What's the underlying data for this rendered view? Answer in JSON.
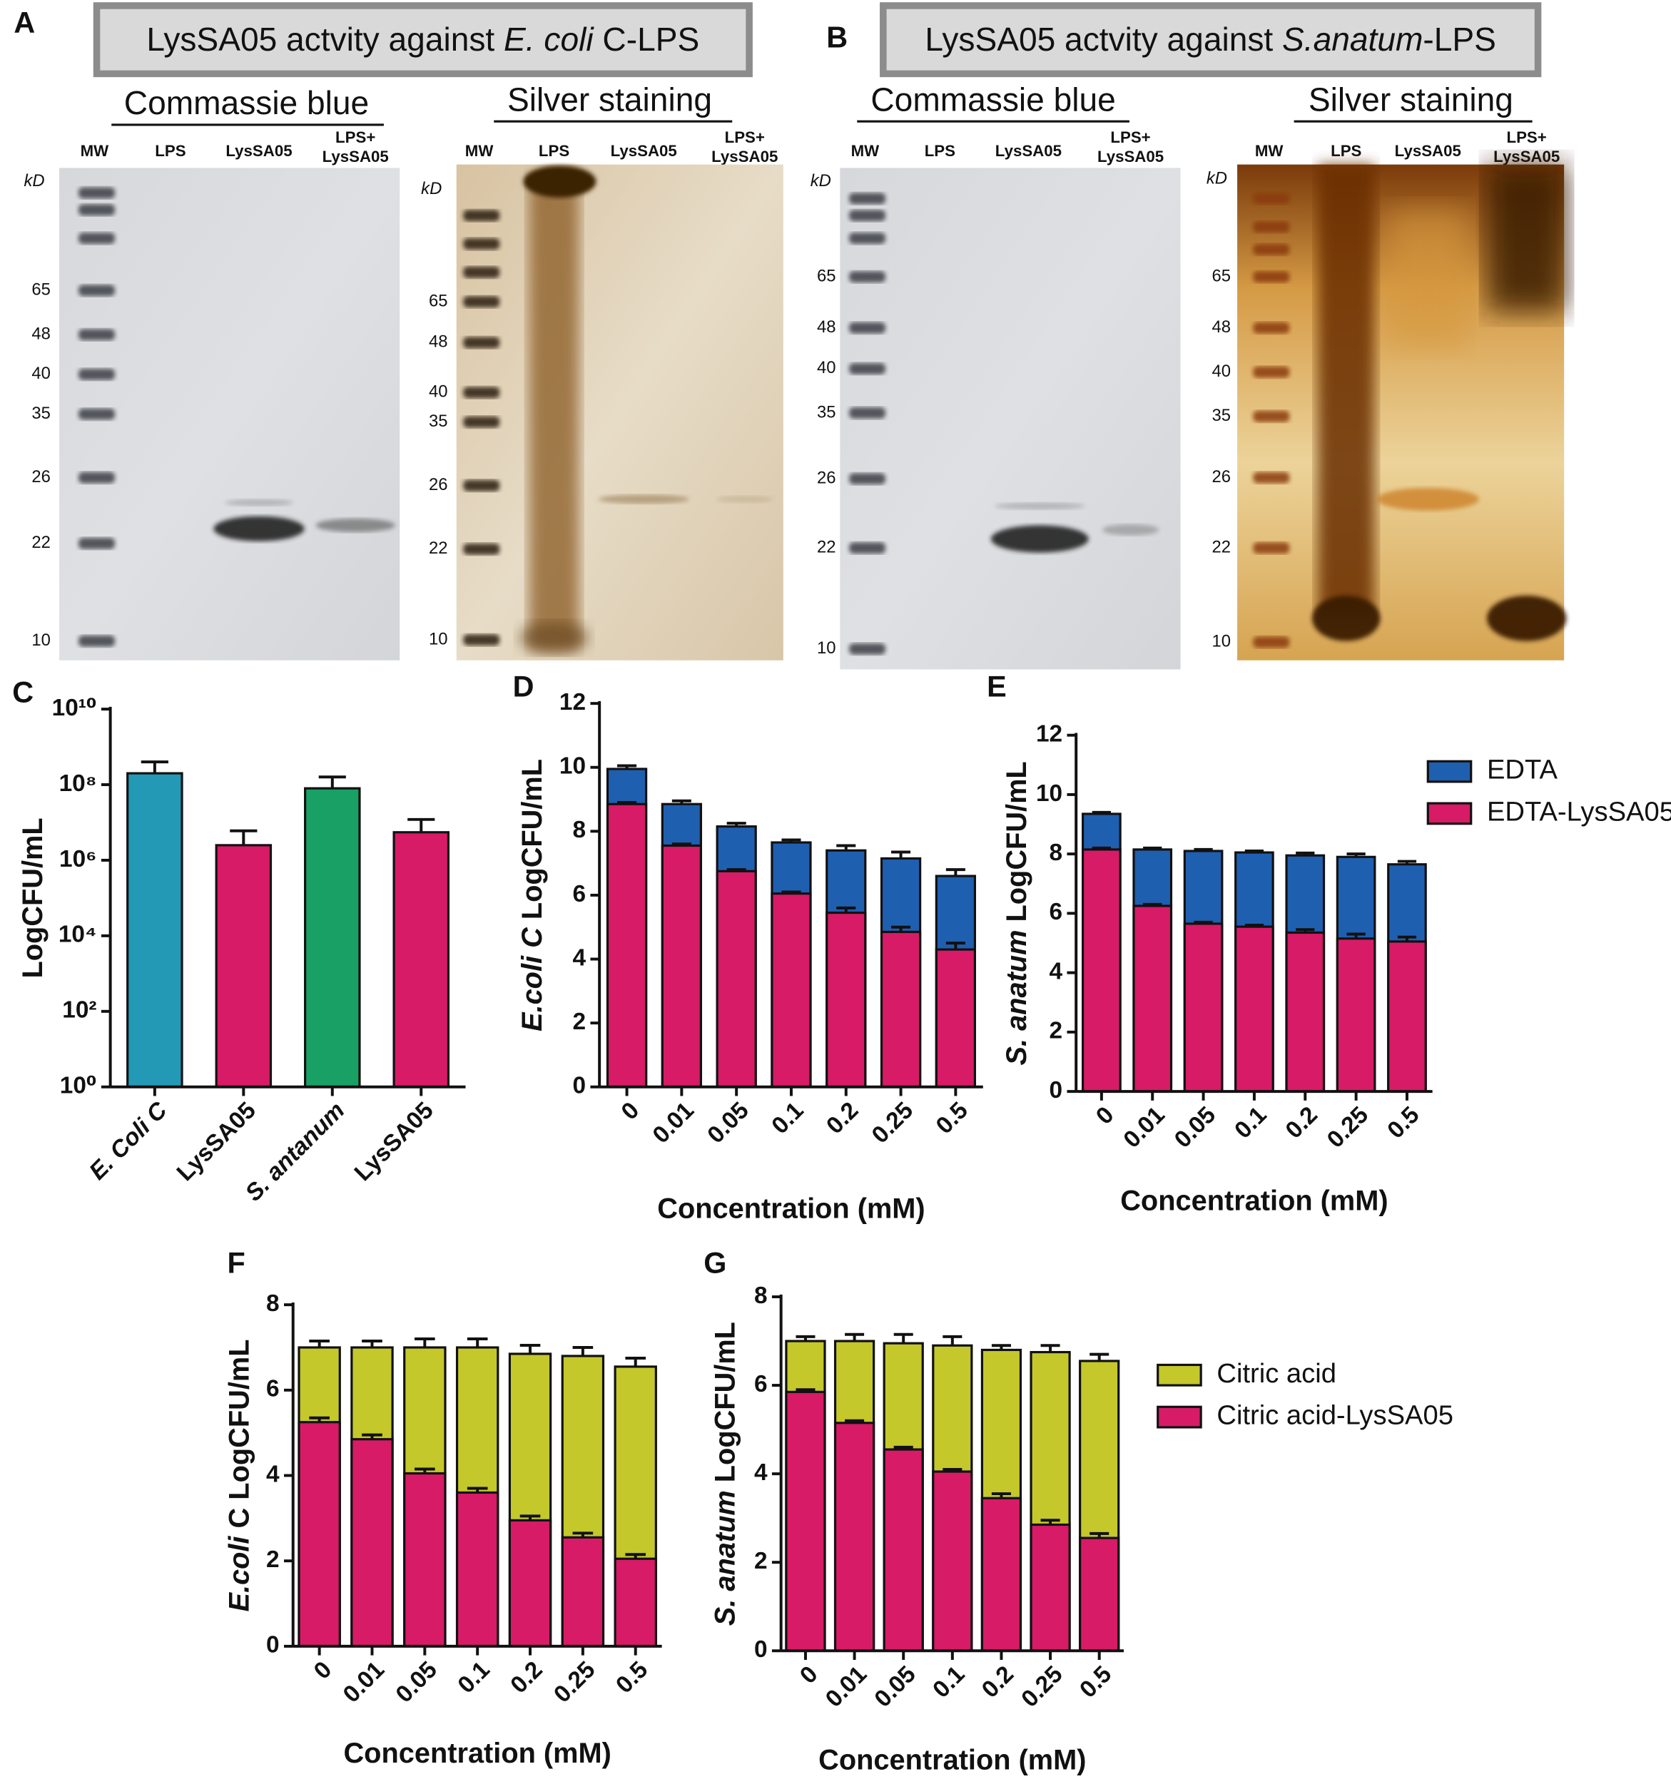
{
  "gels": [
    {
      "panel": "A",
      "header": [
        {
          "text": "LysSA05 actvity against "
        },
        {
          "text": "E. coli",
          "italic": true
        },
        {
          "text": " C-LPS"
        }
      ],
      "blots": [
        {
          "stain": "Commassie blue",
          "lanes": [
            "MW",
            "LPS",
            "LysSA05",
            [
              "LPS+",
              "LysSA05"
            ]
          ],
          "unit": "kD",
          "markers": [
            "65",
            "48",
            "40",
            "35",
            "26",
            "22",
            "10"
          ]
        },
        {
          "stain": "Silver staining",
          "lanes": [
            "MW",
            "LPS",
            "LysSA05",
            [
              "LPS+",
              "LysSA05"
            ]
          ],
          "unit": "kD",
          "markers": [
            "65",
            "48",
            "40",
            "35",
            "26",
            "22",
            "10"
          ]
        }
      ]
    },
    {
      "panel": "B",
      "header": [
        {
          "text": "LysSA05 actvity against "
        },
        {
          "text": "S.anatum",
          "italic": true
        },
        {
          "text": "-LPS"
        }
      ],
      "blots": [
        {
          "stain": "Commassie blue",
          "lanes": [
            "MW",
            "LPS",
            "LysSA05",
            [
              "LPS+",
              "LysSA05"
            ]
          ],
          "unit": "kD",
          "markers": [
            "65",
            "48",
            "40",
            "35",
            "26",
            "22",
            "10"
          ]
        },
        {
          "stain": "Silver staining",
          "lanes": [
            "MW",
            "LPS",
            "LysSA05",
            [
              "LPS+",
              "LysSA05"
            ]
          ],
          "unit": "kD",
          "markers": [
            "65",
            "48",
            "40",
            "35",
            "26",
            "22",
            "10"
          ]
        }
      ]
    }
  ],
  "chart_data": [
    {
      "type": "bar",
      "panel": "C",
      "log_scale": true,
      "ylabel": [
        {
          "text": "LogCFU/mL"
        }
      ],
      "categories": [
        "E. Coli C",
        "LysSA05",
        "S. antanum",
        "LysSA05"
      ],
      "italic": [
        true,
        false,
        true,
        false
      ],
      "values": [
        200000000,
        2500000,
        80000000,
        5500000
      ],
      "errors": [
        200000000,
        3500000,
        80000000,
        6500000
      ],
      "colors": [
        "#2399b5",
        "#d81b66",
        "#19a064",
        "#d81b66"
      ],
      "ylim": [
        1,
        10000000000
      ],
      "yticks": [
        {
          "value": 1,
          "label": "10⁰"
        },
        {
          "value": 100,
          "label": "10²"
        },
        {
          "value": 10000,
          "label": "10⁴"
        },
        {
          "value": 1000000,
          "label": "10⁶"
        },
        {
          "value": 100000000,
          "label": "10⁸"
        },
        {
          "value": 10000000000,
          "label": "10¹⁰"
        }
      ]
    },
    {
      "type": "bar",
      "panel": "D",
      "barmode": "overlay",
      "ylabel": [
        {
          "text": "E.coli C",
          "italic": true
        },
        {
          "text": " LogCFU/mL"
        }
      ],
      "xlabel": "Concentration (mM)",
      "categories": [
        "0",
        "0.01",
        "0.05",
        "0.1",
        "0.2",
        "0.25",
        "0.5"
      ],
      "series": [
        {
          "color": "#1f5fb0",
          "values": [
            9.95,
            8.85,
            8.15,
            7.65,
            7.4,
            7.15,
            6.6
          ],
          "errors": [
            0.1,
            0.1,
            0.1,
            0.08,
            0.15,
            0.2,
            0.2
          ]
        },
        {
          "color": "#d81b66",
          "values": [
            8.85,
            7.55,
            6.75,
            6.05,
            5.45,
            4.85,
            4.3
          ],
          "errors": [
            0.05,
            0.05,
            0.05,
            0.05,
            0.15,
            0.15,
            0.2
          ]
        }
      ],
      "ylim": [
        0,
        12
      ],
      "yticks": [
        0,
        2,
        4,
        6,
        8,
        10,
        12
      ]
    },
    {
      "type": "bar",
      "panel": "E",
      "barmode": "overlay",
      "ylabel": [
        {
          "text": "S. anatum",
          "italic": true
        },
        {
          "text": " LogCFU/mL"
        }
      ],
      "xlabel": "Concentration (mM)",
      "categories": [
        "0",
        "0.01",
        "0.05",
        "0.1",
        "0.2",
        "0.25",
        "0.5"
      ],
      "series": [
        {
          "name": "EDTA",
          "color": "#1f5fb0",
          "values": [
            9.35,
            8.15,
            8.1,
            8.05,
            7.95,
            7.9,
            7.65
          ],
          "errors": [
            0.05,
            0.05,
            0.05,
            0.05,
            0.08,
            0.1,
            0.1
          ]
        },
        {
          "name": "EDTA-LysSA05",
          "color": "#d81b66",
          "values": [
            8.15,
            6.25,
            5.65,
            5.55,
            5.35,
            5.15,
            5.05
          ],
          "errors": [
            0.05,
            0.05,
            0.05,
            0.05,
            0.1,
            0.15,
            0.15
          ]
        }
      ],
      "ylim": [
        0,
        12
      ],
      "yticks": [
        0,
        2,
        4,
        6,
        8,
        10,
        12
      ],
      "legend": "right"
    },
    {
      "type": "bar",
      "panel": "F",
      "barmode": "overlay",
      "ylabel": [
        {
          "text": "E.coli",
          "italic": true
        },
        {
          "text": " C LogCFU/mL"
        }
      ],
      "xlabel": "Concentration (mM)",
      "categories": [
        "0",
        "0.01",
        "0.05",
        "0.1",
        "0.2",
        "0.25",
        "0.5"
      ],
      "series": [
        {
          "color": "#c4c82a",
          "values": [
            7.0,
            7.0,
            7.0,
            7.0,
            6.85,
            6.8,
            6.55
          ],
          "errors": [
            0.15,
            0.15,
            0.2,
            0.2,
            0.2,
            0.2,
            0.2
          ]
        },
        {
          "color": "#d81b66",
          "values": [
            5.25,
            4.85,
            4.05,
            3.6,
            2.95,
            2.55,
            2.05
          ],
          "errors": [
            0.1,
            0.1,
            0.1,
            0.1,
            0.1,
            0.1,
            0.1
          ]
        }
      ],
      "ylim": [
        0,
        8
      ],
      "yticks": [
        0,
        2,
        4,
        6,
        8
      ]
    },
    {
      "type": "bar",
      "panel": "G",
      "barmode": "overlay",
      "ylabel": [
        {
          "text": "S. anatum",
          "italic": true
        },
        {
          "text": " LogCFU/mL"
        }
      ],
      "xlabel": "Concentration (mM)",
      "categories": [
        "0",
        "0.01",
        "0.05",
        "0.1",
        "0.2",
        "0.25",
        "0.5"
      ],
      "series": [
        {
          "name": "Citric acid",
          "color": "#c4c82a",
          "values": [
            7.0,
            7.0,
            6.95,
            6.9,
            6.8,
            6.75,
            6.55
          ],
          "errors": [
            0.1,
            0.15,
            0.2,
            0.2,
            0.1,
            0.15,
            0.15
          ]
        },
        {
          "name": "Citric acid-LysSA05",
          "color": "#d81b66",
          "values": [
            5.85,
            5.15,
            4.55,
            4.05,
            3.45,
            2.85,
            2.55
          ],
          "errors": [
            0.05,
            0.05,
            0.05,
            0.05,
            0.1,
            0.1,
            0.1
          ]
        }
      ],
      "ylim": [
        0,
        8
      ],
      "yticks": [
        0,
        2,
        4,
        6,
        8
      ],
      "legend": "right"
    }
  ]
}
